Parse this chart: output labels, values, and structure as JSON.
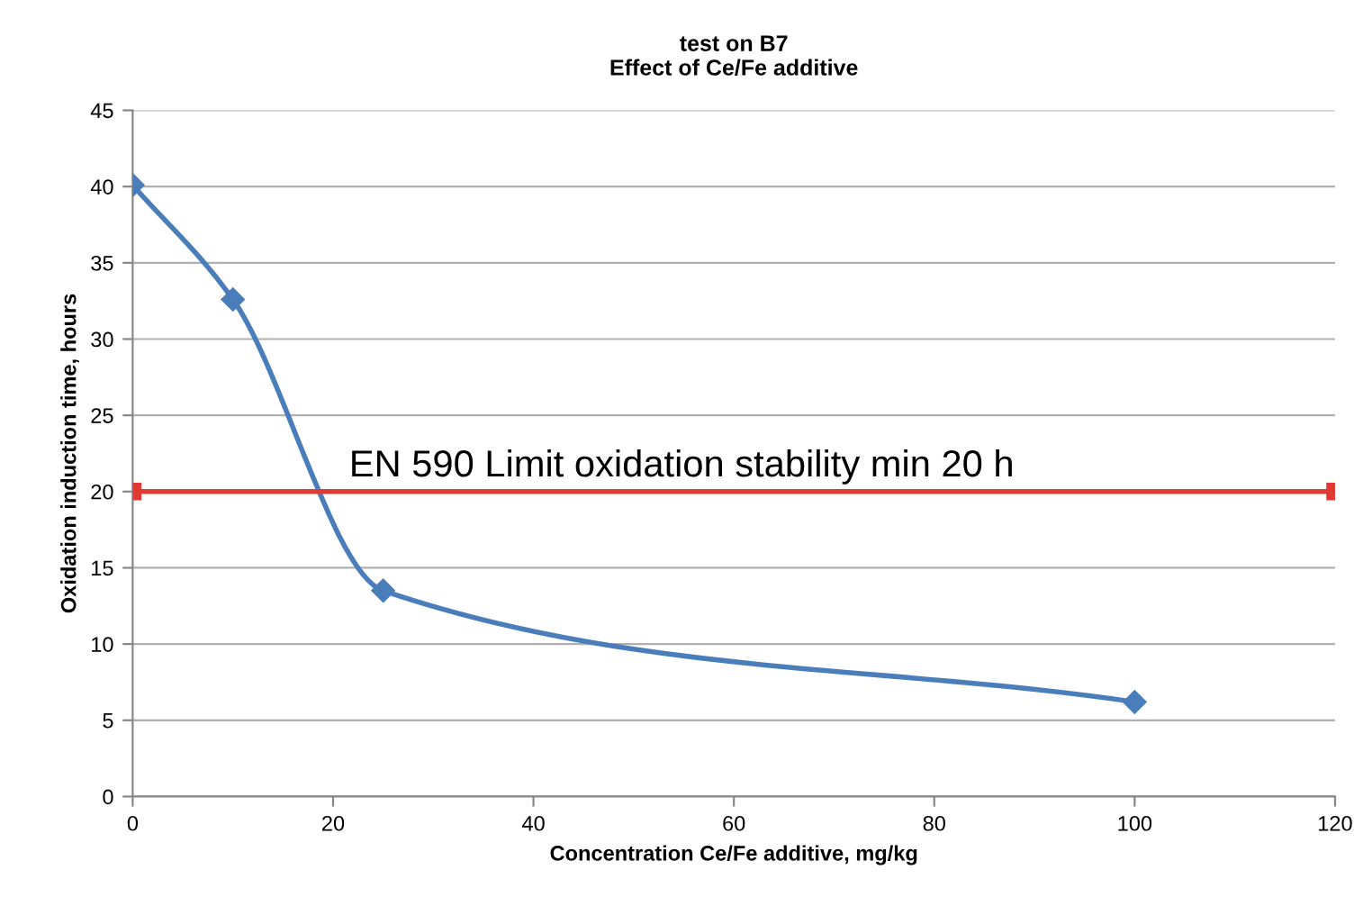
{
  "chart_data": {
    "type": "line",
    "title": "test on B7\nEffect of Ce/Fe additive",
    "xlabel": "Concentration Ce/Fe additive, mg/kg",
    "ylabel": "Oxidation induction time, hours",
    "series": [
      {
        "color": "#4a7ebb",
        "marker": "diamond",
        "x": [
          0,
          10,
          25,
          100
        ],
        "values": [
          40.1,
          32.6,
          13.5,
          6.2
        ]
      },
      {
        "color": "#e03a33",
        "marker": "square",
        "x": [
          0,
          120
        ],
        "values": [
          20,
          20
        ]
      }
    ],
    "annotations": [
      "EN 590 Limit oxidation stability min 20 h"
    ],
    "xlim": [
      0,
      120
    ],
    "xticks": [
      0,
      20,
      40,
      60,
      80,
      100,
      120
    ],
    "ylim": [
      0,
      45
    ],
    "yticks": [
      0,
      5,
      10,
      15,
      20,
      25,
      30,
      35,
      40,
      45
    ],
    "grid": "y",
    "legend": false,
    "line_style": "solid"
  }
}
